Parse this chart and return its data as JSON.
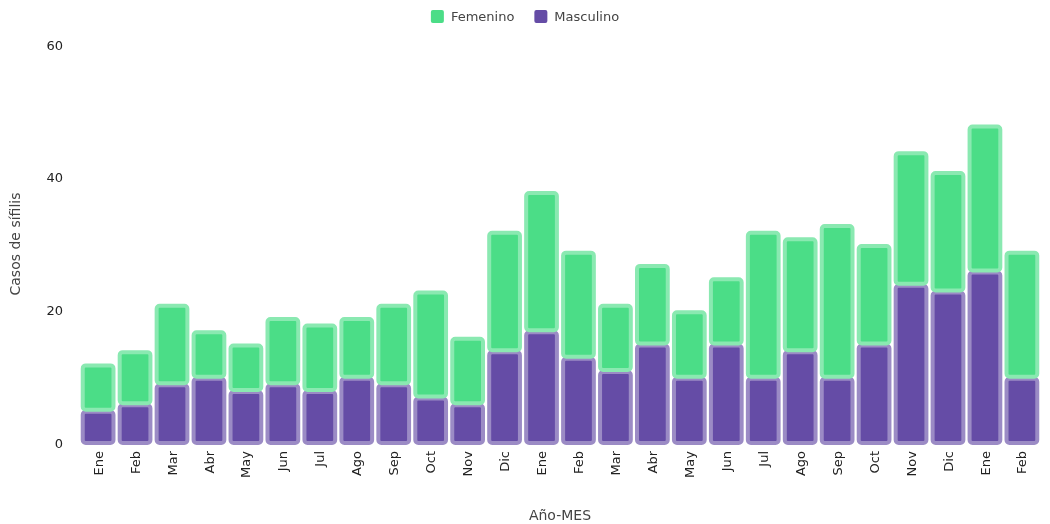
{
  "chart_data": {
    "type": "bar",
    "stacked": true,
    "xlabel": "Año-MES",
    "ylabel": "Casos de sífilis",
    "categories": [
      "Ene",
      "Feb",
      "Mar",
      "Abr",
      "May",
      "Jun",
      "Jul",
      "Ago",
      "Sep",
      "Oct",
      "Nov",
      "Dic",
      "Ene",
      "Feb",
      "Mar",
      "Abr",
      "May",
      "Jun",
      "Jul",
      "Ago",
      "Sep",
      "Oct",
      "Nov",
      "Dic",
      "Ene",
      "Feb"
    ],
    "series": [
      {
        "name": "Masculino",
        "color": "#654ca6",
        "values": [
          5,
          6,
          9,
          10,
          8,
          9,
          8,
          10,
          9,
          7,
          6,
          14,
          17,
          13,
          11,
          15,
          10,
          15,
          10,
          14,
          10,
          15,
          24,
          23,
          26,
          10
        ]
      },
      {
        "name": "Femenino",
        "color": "#4bdd87",
        "values": [
          7,
          8,
          12,
          7,
          7,
          10,
          10,
          9,
          12,
          16,
          10,
          18,
          21,
          16,
          10,
          12,
          10,
          10,
          22,
          17,
          23,
          15,
          20,
          18,
          22,
          19
        ]
      }
    ],
    "ylim": [
      0,
      60
    ],
    "yticks": [
      0,
      20,
      40,
      60
    ],
    "grid": false,
    "legend": "top"
  }
}
